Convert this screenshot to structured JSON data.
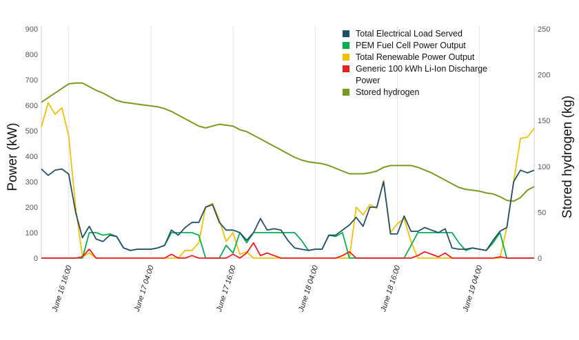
{
  "chart_data": {
    "type": "line",
    "title": "",
    "ylabel_left": "Power (kW)",
    "ylabel_right": "Stored hydrogen (kg)",
    "y_left_ticks": [
      "0",
      "100",
      "200",
      "300",
      "400",
      "500",
      "600",
      "700",
      "800",
      "900"
    ],
    "y_right_ticks": [
      "0",
      "50",
      "100",
      "150",
      "200",
      "250"
    ],
    "ylim_left": [
      0,
      900
    ],
    "ylim_right": [
      0,
      250
    ],
    "x_tick_labels": [
      "June 16 16:00",
      "June 17 04:00",
      "June 17 16:00",
      "June 18 04:00",
      "June 18 16:00",
      "June 19 04:00"
    ],
    "x_range_hours": [
      0,
      72
    ],
    "x_tick_hours": [
      4,
      16,
      28,
      40,
      52,
      64
    ],
    "grid": "vertical",
    "legend_position": "top-right",
    "series": [
      {
        "name": "Total Electrical Load Served",
        "axis": "left",
        "color": "#1f4e6b",
        "x": [
          0,
          1,
          2,
          3,
          4,
          5,
          6,
          7,
          8,
          9,
          10,
          11,
          12,
          13,
          14,
          15,
          16,
          17,
          18,
          19,
          20,
          21,
          22,
          23,
          24,
          25,
          26,
          27,
          28,
          29,
          30,
          31,
          32,
          33,
          34,
          35,
          36,
          37,
          38,
          39,
          40,
          41,
          42,
          43,
          44,
          45,
          46,
          47,
          48,
          49,
          50,
          51,
          52,
          53,
          54,
          55,
          56,
          57,
          58,
          59,
          60,
          61,
          62,
          63,
          64,
          65,
          66,
          67,
          68,
          69,
          70,
          71,
          72
        ],
        "values": [
          350,
          325,
          345,
          350,
          330,
          180,
          80,
          125,
          75,
          65,
          90,
          85,
          40,
          30,
          35,
          35,
          35,
          40,
          50,
          110,
          90,
          120,
          140,
          140,
          200,
          210,
          140,
          110,
          110,
          100,
          70,
          100,
          155,
          110,
          115,
          110,
          70,
          40,
          35,
          30,
          35,
          35,
          90,
          90,
          110,
          130,
          160,
          125,
          200,
          200,
          300,
          95,
          95,
          165,
          105,
          105,
          120,
          110,
          100,
          115,
          40,
          35,
          35,
          40,
          35,
          30,
          70,
          105,
          120,
          300,
          345,
          335,
          345
        ]
      },
      {
        "name": "PEM Fuel Cell Power Output",
        "axis": "left",
        "color": "#00b050",
        "x": [
          0,
          1,
          2,
          3,
          4,
          5,
          6,
          7,
          8,
          9,
          10,
          11,
          12,
          13,
          14,
          15,
          16,
          17,
          18,
          19,
          20,
          21,
          22,
          23,
          24,
          25,
          26,
          27,
          28,
          29,
          30,
          31,
          32,
          33,
          34,
          35,
          36,
          37,
          38,
          39,
          40,
          41,
          42,
          43,
          44,
          45,
          46,
          47,
          48,
          49,
          50,
          51,
          52,
          53,
          54,
          55,
          56,
          57,
          58,
          59,
          60,
          61,
          62,
          63,
          64,
          65,
          66,
          67,
          68,
          69,
          70,
          71,
          72
        ],
        "values": [
          0,
          0,
          0,
          0,
          0,
          0,
          0,
          100,
          100,
          90,
          95,
          85,
          40,
          30,
          35,
          35,
          35,
          40,
          50,
          100,
          100,
          100,
          100,
          90,
          0,
          0,
          0,
          50,
          20,
          100,
          60,
          100,
          100,
          100,
          100,
          100,
          100,
          100,
          70,
          30,
          35,
          35,
          90,
          85,
          100,
          0,
          0,
          0,
          0,
          0,
          0,
          0,
          0,
          0,
          50,
          100,
          100,
          100,
          100,
          100,
          100,
          60,
          30,
          40,
          35,
          30,
          60,
          100,
          0,
          0,
          0,
          0,
          0
        ]
      },
      {
        "name": "Total Renewable Power Output",
        "axis": "left",
        "color": "#f5c000",
        "x": [
          0,
          1,
          2,
          3,
          4,
          5,
          6,
          7,
          8,
          9,
          10,
          11,
          12,
          13,
          14,
          15,
          16,
          17,
          18,
          19,
          20,
          21,
          22,
          23,
          24,
          25,
          26,
          27,
          28,
          29,
          30,
          31,
          32,
          33,
          34,
          35,
          36,
          37,
          38,
          39,
          40,
          41,
          42,
          43,
          44,
          45,
          46,
          47,
          48,
          49,
          50,
          51,
          52,
          53,
          54,
          55,
          56,
          57,
          58,
          59,
          60,
          61,
          62,
          63,
          64,
          65,
          66,
          67,
          68,
          69,
          70,
          71,
          72
        ],
        "values": [
          515,
          610,
          565,
          590,
          480,
          200,
          5,
          20,
          0,
          0,
          0,
          0,
          0,
          0,
          0,
          0,
          0,
          0,
          0,
          0,
          0,
          30,
          30,
          60,
          200,
          215,
          150,
          65,
          100,
          15,
          25,
          0,
          0,
          0,
          0,
          0,
          0,
          0,
          0,
          0,
          0,
          0,
          0,
          0,
          0,
          0,
          200,
          170,
          210,
          195,
          305,
          100,
          135,
          155,
          65,
          0,
          0,
          0,
          0,
          0,
          0,
          0,
          0,
          0,
          0,
          0,
          0,
          0,
          120,
          300,
          470,
          475,
          510
        ]
      },
      {
        "name": "Generic 100 kWh Li-Ion Discharge Power",
        "axis": "left",
        "color": "#ee1c1c",
        "x": [
          0,
          1,
          2,
          3,
          4,
          5,
          6,
          7,
          8,
          9,
          10,
          11,
          12,
          13,
          14,
          15,
          16,
          17,
          18,
          19,
          20,
          21,
          22,
          23,
          24,
          25,
          26,
          27,
          28,
          29,
          30,
          31,
          32,
          33,
          34,
          35,
          36,
          37,
          38,
          39,
          40,
          41,
          42,
          43,
          44,
          45,
          46,
          47,
          48,
          49,
          50,
          51,
          52,
          53,
          54,
          55,
          56,
          57,
          58,
          59,
          60,
          61,
          62,
          63,
          64,
          65,
          66,
          67,
          68,
          69,
          70,
          71,
          72
        ],
        "values": [
          0,
          0,
          0,
          0,
          0,
          0,
          5,
          35,
          0,
          0,
          0,
          0,
          0,
          0,
          0,
          0,
          0,
          0,
          0,
          15,
          0,
          0,
          10,
          0,
          0,
          0,
          0,
          0,
          15,
          0,
          20,
          60,
          10,
          20,
          10,
          0,
          0,
          0,
          0,
          0,
          0,
          0,
          0,
          0,
          10,
          25,
          0,
          0,
          0,
          0,
          0,
          0,
          0,
          0,
          0,
          10,
          25,
          15,
          5,
          20,
          0,
          0,
          0,
          0,
          0,
          0,
          0,
          5,
          0,
          0,
          0,
          0,
          0
        ]
      },
      {
        "name": "Stored hydrogen",
        "axis": "right",
        "color": "#7a9a1e",
        "x": [
          0,
          1,
          2,
          3,
          4,
          5,
          6,
          7,
          8,
          9,
          10,
          11,
          12,
          13,
          14,
          15,
          16,
          17,
          18,
          19,
          20,
          21,
          22,
          23,
          24,
          25,
          26,
          27,
          28,
          29,
          30,
          31,
          32,
          33,
          34,
          35,
          36,
          37,
          38,
          39,
          40,
          41,
          42,
          43,
          44,
          45,
          46,
          47,
          48,
          49,
          50,
          51,
          52,
          53,
          54,
          55,
          56,
          57,
          58,
          59,
          60,
          61,
          62,
          63,
          64,
          65,
          66,
          67,
          68,
          69,
          70,
          71,
          72
        ],
        "values": [
          170,
          175,
          180,
          185,
          190,
          191,
          191,
          187,
          183,
          180,
          176,
          172,
          170,
          169,
          168,
          167,
          166,
          165,
          163,
          160,
          156,
          152,
          148,
          144,
          142,
          144,
          146,
          145,
          144,
          140,
          138,
          134,
          130,
          126,
          122,
          118,
          114,
          110,
          107,
          105,
          104,
          103,
          101,
          98,
          95,
          92,
          92,
          92,
          93,
          95,
          99,
          101,
          101,
          101,
          101,
          99,
          96,
          93,
          89,
          85,
          81,
          77,
          75,
          74,
          73,
          71,
          70,
          67,
          63,
          62,
          66,
          74,
          78
        ]
      }
    ]
  }
}
